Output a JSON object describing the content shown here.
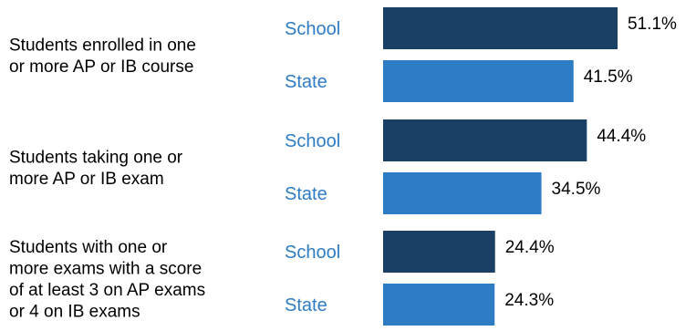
{
  "chart_data": {
    "type": "bar",
    "orientation": "horizontal",
    "categories": [
      [
        "Students enrolled in one",
        "or more AP or IB course"
      ],
      [
        "Students taking one or",
        "more AP or IB exam"
      ],
      [
        "Students with one or",
        "more exams with a score",
        "of at least 3 on AP exams",
        "or 4 on IB exams"
      ]
    ],
    "series": [
      {
        "name": "School",
        "values": [
          51.1,
          44.4,
          24.4
        ],
        "color": "#1a4066"
      },
      {
        "name": "State",
        "values": [
          41.5,
          34.5,
          24.3
        ],
        "color": "#2e7cc4"
      }
    ],
    "value_labels": {
      "School": [
        "51.1%",
        "44.4%",
        "24.4%"
      ],
      "State": [
        "41.5%",
        "34.5%",
        "24.3%"
      ]
    },
    "xlim": [
      0,
      100
    ],
    "legend": "none",
    "grid": false,
    "series_label_color": "#2e7cc4"
  }
}
